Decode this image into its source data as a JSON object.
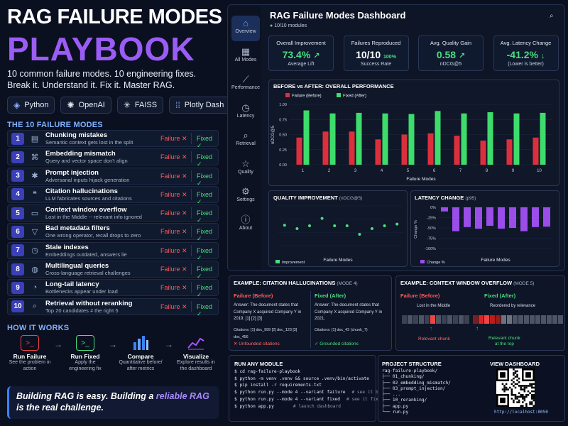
{
  "header": {
    "title_line1": "RAG FAILURE MODES",
    "title_line2": "PLAYBOOK",
    "tagline1": "10 common failure modes. 10 engineering fixes.",
    "tagline2": "Break it. Understand it. Fix it. Master RAG."
  },
  "tech_stack": [
    {
      "label": "Python",
      "icon": "python-icon"
    },
    {
      "label": "OpenAI",
      "icon": "openai-icon"
    },
    {
      "label": "FAISS",
      "icon": "faiss-icon"
    },
    {
      "label": "Plotly Dash",
      "icon": "plotly-icon"
    }
  ],
  "failure_modes_heading": "THE 10 FAILURE MODES",
  "failure_label": "Failure ✕",
  "fixed_label": "Fixed ✓",
  "failure_modes": [
    {
      "num": "1",
      "name": "Chunking mistakes",
      "desc": "Semantic context gets lost in the split",
      "icon": "document-icon"
    },
    {
      "num": "2",
      "name": "Embedding mismatch",
      "desc": "Query and vector space don't align",
      "icon": "network-icon"
    },
    {
      "num": "3",
      "name": "Prompt injection",
      "desc": "Adversarial inputs hijack generation",
      "icon": "bug-icon"
    },
    {
      "num": "4",
      "name": "Citation hallucinations",
      "desc": "LLM fabricates sources and citations",
      "icon": "quote-icon"
    },
    {
      "num": "5",
      "name": "Context window overflow",
      "desc": "Lost in the Middle -- relevant info ignored",
      "icon": "window-icon"
    },
    {
      "num": "6",
      "name": "Bad metadata filters",
      "desc": "One wrong operator, recall drops to zero",
      "icon": "filter-icon"
    },
    {
      "num": "7",
      "name": "Stale indexes",
      "desc": "Embeddings outdated, answers lie",
      "icon": "clock-icon"
    },
    {
      "num": "8",
      "name": "Multilingual queries",
      "desc": "Cross-language retrieval challenges",
      "icon": "globe-icon"
    },
    {
      "num": "9",
      "name": "Long-tail latency",
      "desc": "Bottlenecks appear under load",
      "icon": "gauge-icon"
    },
    {
      "num": "10",
      "name": "Retrieval without reranking",
      "desc": "Top 20 candidates ≠ the right 5",
      "icon": "search-icon"
    }
  ],
  "how_heading": "HOW IT WORKS",
  "how_steps": [
    {
      "label": "Run Failure",
      "desc": "See the problem in action"
    },
    {
      "label": "Run Fixed",
      "desc": "Apply the engineering fix"
    },
    {
      "label": "Compare",
      "desc": "Quantitative before/ after metrics"
    },
    {
      "label": "Visualize",
      "desc": "Explore results in the dashboard"
    }
  ],
  "quote": {
    "pre": "Building RAG is easy. Building a ",
    "highlight": "reliable RAG",
    "post": " is the real challenge."
  },
  "dashboard": {
    "title": "RAG Failure Modes Dashboard",
    "status": "10/10 modules",
    "nav": [
      {
        "label": "Overview",
        "icon": "home-icon",
        "active": true
      },
      {
        "label": "All Modes",
        "icon": "grid-icon"
      },
      {
        "label": "Performance",
        "icon": "chart-icon"
      },
      {
        "label": "Latency",
        "icon": "clock-icon"
      },
      {
        "label": "Retrieval",
        "icon": "search-icon"
      },
      {
        "label": "Quality",
        "icon": "star-icon"
      },
      {
        "label": "Settings",
        "icon": "gear-icon"
      },
      {
        "label": "About",
        "icon": "info-icon"
      }
    ],
    "kpis": [
      {
        "label": "Overall Improvement",
        "value": "73.4%",
        "sub": "Average Lift",
        "color": "#4ade80",
        "arrow": "↗"
      },
      {
        "label": "Failures Reproduced",
        "value": "10/10",
        "extra": "100%",
        "sub": "Success Rate",
        "color": "#ffffff"
      },
      {
        "label": "Avg. Quality Gain",
        "value": "0.58",
        "sub": "nDCG@5",
        "color": "#4ade80",
        "arrow": "↗"
      },
      {
        "label": "Avg. Latency Change",
        "value": "-41.2%",
        "sub": "(Lower is better)",
        "color": "#4ade80",
        "arrow": "↓"
      }
    ]
  },
  "chart_data": [
    {
      "type": "bar",
      "title": "BEFORE vs AFTER: OVERALL PERFORMANCE",
      "xlabel": "Failure Modes",
      "ylabel": "nDCG@5",
      "categories": [
        "1",
        "2",
        "3",
        "4",
        "5",
        "6",
        "7",
        "8",
        "9",
        "10"
      ],
      "ylim": [
        0,
        1.0
      ],
      "yticks": [
        "0.00",
        "0.25",
        "0.50",
        "0.75",
        "1.00"
      ],
      "series": [
        {
          "name": "Failure (Before)",
          "color": "#dc2f3d",
          "values": [
            0.45,
            0.55,
            0.55,
            0.42,
            0.5,
            0.52,
            0.48,
            0.4,
            0.42,
            0.45
          ]
        },
        {
          "name": "Fixed (After)",
          "color": "#3ddc6b",
          "values": [
            0.9,
            0.85,
            0.86,
            0.85,
            0.84,
            0.89,
            0.85,
            0.87,
            0.85,
            0.86
          ]
        }
      ]
    },
    {
      "type": "scatter",
      "title": "QUALITY IMPROVEMENT",
      "title_suffix": "(nDCG@5)",
      "xlabel": "Failure Modes",
      "legend": "Improvement",
      "categories": [
        "1",
        "2",
        "3",
        "4",
        "5",
        "6",
        "7",
        "8",
        "9",
        "10"
      ],
      "series": [
        {
          "name": "Improvement",
          "color": "#4ade80",
          "values": [
            0.56,
            0.5,
            0.55,
            0.68,
            0.55,
            0.55,
            0.4,
            0.5,
            0.55,
            0.58
          ]
        }
      ]
    },
    {
      "type": "bar",
      "title": "LATENCY CHANGE",
      "title_suffix": "(p95)",
      "xlabel": "Failure Modes",
      "ylabel": "Change %",
      "legend": "Change %",
      "yticks": [
        "0%",
        "-25%",
        "-50%",
        "-75%",
        "-100%"
      ],
      "ylim": [
        -100,
        0
      ],
      "categories": [
        "1",
        "2",
        "3",
        "4",
        "5",
        "6",
        "7",
        "8",
        "9",
        "10"
      ],
      "series": [
        {
          "name": "Change %",
          "color": "#9b4dea",
          "values": [
            -10,
            -58,
            -48,
            -52,
            -45,
            -52,
            -50,
            -58,
            -48,
            -47
          ]
        }
      ]
    }
  ],
  "example1": {
    "title": "EXAMPLE: CITATION HALLUCINATIONS",
    "title_suffix": "(MODE 4)",
    "before_label": "Failure (Before)",
    "before_text": "Answer: The document states that Company X acquired Company Y in 2019. [1] [2] [3]",
    "before_cite": "Citations: [1] doc_999 [2] doc_123 [3] doc_456",
    "before_foot": "✕ Unfounded citations",
    "after_label": "Fixed (After)",
    "after_text": "Answer: The document states that Company X acquired Company Y in 2021.",
    "after_cite": "Citations: [1] doc_42 (chunk_7)",
    "after_foot": "✓ Grounded citations"
  },
  "example2": {
    "title": "EXAMPLE: CONTEXT WINDOW OVERFLOW",
    "title_suffix": "(MODE 5)",
    "before_label": "Failure (Before)",
    "before_caption": "Lost in the Middle",
    "before_foot": "Relevant chunk",
    "after_label": "Fixed (After)",
    "after_caption": "Reordered by relevance",
    "after_foot1": "Relevant chunk",
    "after_foot2": "at the top"
  },
  "run": {
    "title": "RUN ANY MODULE",
    "lines": [
      "$ cd rag-failure-playbook",
      "$ python -m venv .venv && source .venv/bin/activate",
      "$ pip install -r requirements.txt",
      "$ python run.py --mode 4 --variant failure",
      "$ python run.py --mode 4 --variant fixed",
      "$ python app.py"
    ],
    "comments": [
      "",
      "",
      "",
      "# see it break",
      "# see it fixed",
      "# launch dashboard"
    ]
  },
  "project": {
    "title": "PROJECT STRUCTURE",
    "tree": "rag-failure-playbook/\n├── 01_chunking/\n├── 02_embedding_mismatch/\n├── 03_prompt_injection/\n├── ...\n├── 10_reranking/\n├── app.py\n└── run.py"
  },
  "view": {
    "title": "VIEW DASHBOARD",
    "url": "http://localhost:8050"
  }
}
